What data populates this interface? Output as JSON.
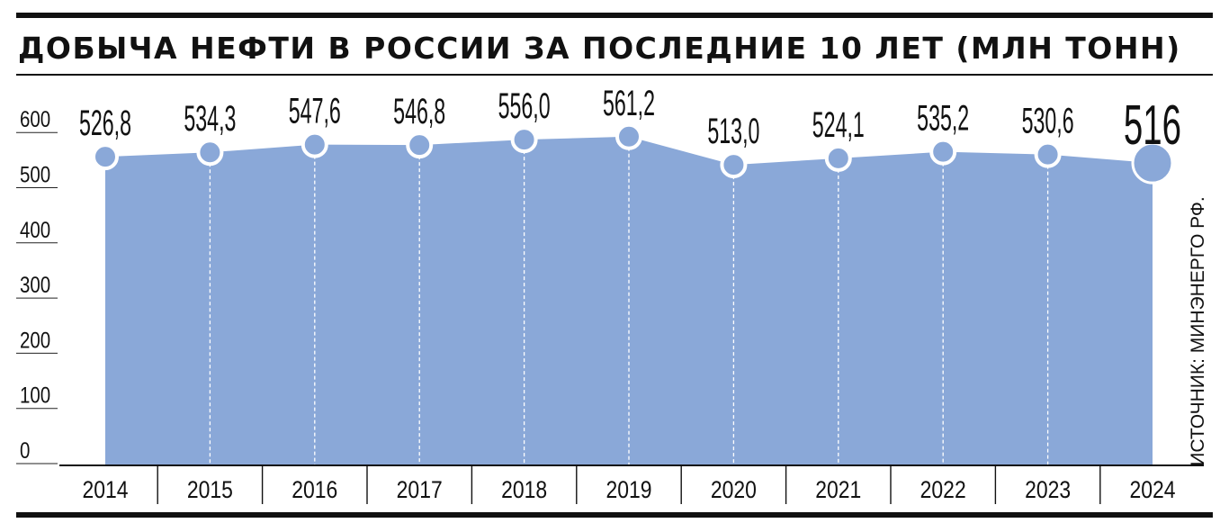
{
  "chart_data": {
    "type": "area",
    "title": "ДОБЫЧА НЕФТИ В РОССИИ ЗА ПОСЛЕДНИЕ 10 ЛЕТ (МЛН ТОНН)",
    "source": "ИСТОЧНИК: МИНЭНЕРГО РФ.",
    "categories": [
      "2014",
      "2015",
      "2016",
      "2017",
      "2018",
      "2019",
      "2020",
      "2021",
      "2022",
      "2023",
      "2024"
    ],
    "values": [
      526.8,
      534.3,
      547.6,
      546.8,
      556.0,
      561.2,
      513.0,
      524.1,
      535.2,
      530.6,
      516
    ],
    "value_labels": [
      "526,8",
      "534,3",
      "547,6",
      "546,8",
      "556,0",
      "561,2",
      "513,0",
      "524,1",
      "535,2",
      "530,6",
      "516"
    ],
    "y_ticks": [
      "0",
      "100",
      "200",
      "300",
      "400",
      "500",
      "600"
    ],
    "ylim": [
      0,
      600
    ],
    "grid": false,
    "legend": "none",
    "colors": {
      "fill": "#8aa8d8",
      "marker_edge": "#ffffff",
      "text": "#111111"
    }
  }
}
